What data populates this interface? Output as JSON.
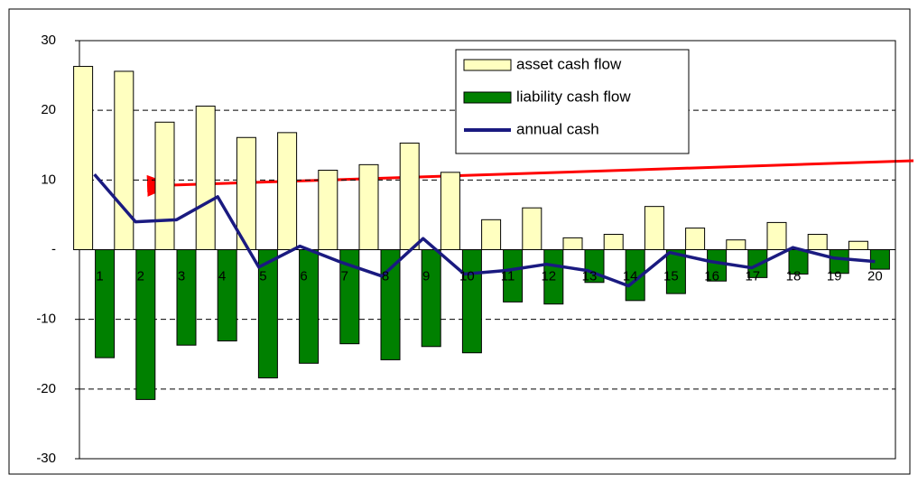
{
  "chart_data": {
    "type": "bar-line",
    "categories": [
      "1",
      "2",
      "3",
      "4",
      "5",
      "6",
      "7",
      "8",
      "9",
      "10",
      "11",
      "12",
      "13",
      "14",
      "15",
      "16",
      "17",
      "18",
      "19",
      "20"
    ],
    "series": [
      {
        "name": "asset cash flow",
        "type": "bar",
        "color": "#ffffc0",
        "values": [
          26.3,
          25.6,
          18.3,
          20.6,
          16.1,
          16.8,
          11.4,
          12.2,
          15.3,
          11.1,
          4.3,
          6.0,
          1.7,
          2.2,
          6.2,
          3.1,
          1.4,
          3.9,
          2.2,
          1.2
        ]
      },
      {
        "name": "liability cash flow",
        "type": "bar",
        "color": "#008000",
        "values": [
          -15.5,
          -21.5,
          -13.7,
          -13.1,
          -18.4,
          -16.3,
          -13.5,
          -15.8,
          -13.9,
          -14.8,
          -7.5,
          -7.8,
          -4.7,
          -7.3,
          -6.3,
          -4.5,
          -4.0,
          -3.5,
          -3.4,
          -2.8
        ]
      },
      {
        "name": "annual cash",
        "type": "line",
        "color": "#1a1a80",
        "values": [
          10.8,
          4.0,
          4.3,
          7.6,
          -2.5,
          0.5,
          -1.8,
          -3.8,
          1.6,
          -3.5,
          -3.0,
          -2.1,
          -3.0,
          -5.2,
          -0.4,
          -1.7,
          -2.6,
          0.3,
          -1.2,
          -1.7
        ]
      }
    ],
    "ylim": [
      -30,
      30
    ],
    "yticks": [
      -30,
      -20,
      -10,
      {
        "value": 0,
        "label": "-"
      },
      10,
      20,
      30
    ],
    "grid": true
  }
}
